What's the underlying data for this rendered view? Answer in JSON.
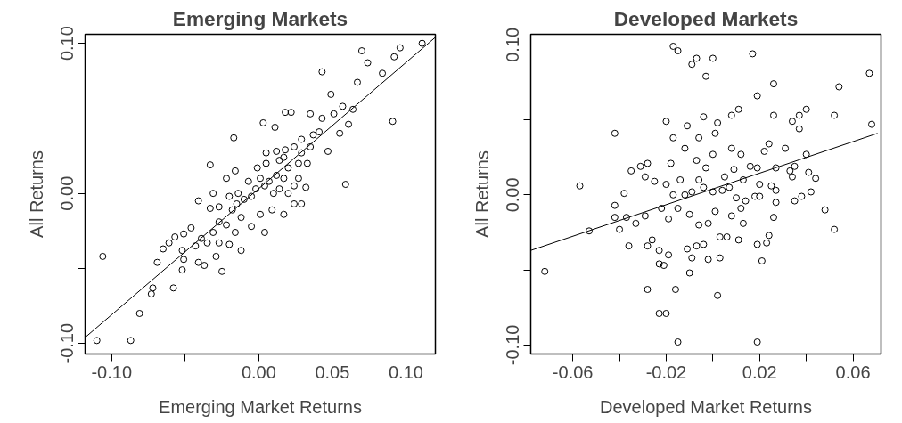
{
  "chart_data": [
    {
      "type": "scatter",
      "title": "Emerging Markets",
      "xlabel": "Emerging Market Returns",
      "ylabel": "All Returns",
      "grid": false,
      "xlim": [
        -0.118,
        0.12
      ],
      "ylim": [
        -0.107,
        0.106
      ],
      "xticks": [
        {
          "value": -0.1,
          "label": "-0.10"
        },
        {
          "value": -0.05,
          "label": null
        },
        {
          "value": 0,
          "label": "0.00"
        },
        0.05,
        {
          "value": 0.1,
          "label": "0.10"
        }
      ],
      "yticks": [
        {
          "value": -0.1,
          "label": "-0.10"
        },
        {
          "value": -0.05,
          "label": null
        },
        {
          "value": 0,
          "label": "0.00"
        },
        {
          "value": 0.05,
          "label": null
        },
        {
          "value": 0.1,
          "label": "0.10"
        }
      ],
      "series": [
        {
          "marker": "circle",
          "color": "#000000",
          "x": [
            0.111,
            0.096,
            0.092,
            0.07,
            0.074,
            0.043,
            0.084,
            0.067,
            0.049,
            0.057,
            0.064,
            0.091,
            0.018,
            0.022,
            0.035,
            0.003,
            0.011,
            -0.017,
            0.043,
            0.051,
            0.061,
            0.055,
            0.047,
            0.059,
            0.029,
            0.035,
            0.018,
            0.014,
            0.005,
            -0.033,
            -0.041,
            -0.031,
            -0.022,
            -0.016,
            -0.014,
            -0.007,
            -0.001,
            0.001,
            0.007,
            0.012,
            0.02,
            0.027,
            0.032,
            0.029,
            0.024,
            0.017,
            0.009,
            0.004,
            0.001,
            -0.005,
            -0.012,
            -0.018,
            -0.027,
            -0.033,
            -0.022,
            -0.031,
            -0.027,
            -0.02,
            -0.012,
            -0.029,
            -0.025,
            -0.037,
            -0.041,
            -0.046,
            -0.051,
            -0.057,
            -0.061,
            -0.065,
            -0.052,
            -0.051,
            -0.052,
            -0.069,
            -0.072,
            -0.073,
            -0.058,
            -0.081,
            -0.106,
            -0.11,
            -0.087,
            -0.035,
            -0.039,
            -0.043,
            -0.005,
            -0.01,
            -0.002,
            0.004,
            0.014,
            0.02,
            0.01,
            -0.015,
            -0.02,
            -0.027,
            -0.016,
            0.037,
            0.041,
            0.024,
            0.029,
            0.017,
            0.012,
            0.005,
            0.033,
            0.017,
            0.027,
            0.024
          ],
          "values": [
            0.1,
            0.097,
            0.091,
            0.095,
            0.087,
            0.081,
            0.08,
            0.074,
            0.066,
            0.058,
            0.056,
            0.048,
            0.054,
            0.054,
            0.053,
            0.047,
            0.044,
            0.037,
            0.05,
            0.053,
            0.046,
            0.04,
            0.028,
            0.006,
            0.036,
            0.031,
            0.029,
            0.022,
            0.027,
            0.019,
            -0.005,
            0.0,
            0.01,
            0.015,
            0.0,
            0.008,
            0.017,
            0.01,
            0.008,
            0.012,
            0.017,
            0.02,
            0.004,
            -0.007,
            -0.007,
            -0.014,
            -0.011,
            -0.026,
            -0.014,
            -0.022,
            -0.016,
            -0.011,
            -0.009,
            -0.01,
            -0.021,
            -0.026,
            -0.033,
            -0.034,
            -0.038,
            -0.042,
            -0.052,
            -0.048,
            -0.046,
            -0.023,
            -0.027,
            -0.029,
            -0.033,
            -0.037,
            -0.038,
            -0.044,
            -0.051,
            -0.046,
            -0.063,
            -0.067,
            -0.063,
            -0.08,
            -0.042,
            -0.098,
            -0.098,
            -0.033,
            -0.03,
            -0.035,
            -0.002,
            -0.004,
            0.003,
            0.005,
            0.003,
            0.0,
            0.0,
            -0.007,
            -0.002,
            -0.019,
            -0.026,
            0.039,
            0.041,
            0.031,
            0.027,
            0.024,
            0.028,
            0.02,
            0.02,
            0.01,
            0.01,
            0.005
          ]
        },
        {
          "type": "line",
          "color": "#000000",
          "x": [
            -0.118,
            0.12
          ],
          "values": [
            -0.096,
            0.104
          ]
        }
      ]
    },
    {
      "type": "scatter",
      "title": "Developed Markets",
      "xlabel": "Developed Market Returns",
      "ylabel": "All Returns",
      "grid": false,
      "xlim": [
        -0.078,
        0.072
      ],
      "ylim": [
        -0.106,
        0.107
      ],
      "xticks": [
        -0.06,
        {
          "value": -0.04,
          "label": null
        },
        -0.02,
        {
          "value": 0,
          "label": null
        },
        0.02,
        {
          "value": 0.04,
          "label": null
        },
        0.06
      ],
      "yticks": [
        {
          "value": -0.1,
          "label": "-0.10"
        },
        {
          "value": -0.05,
          "label": null
        },
        {
          "value": 0,
          "label": "0.00"
        },
        {
          "value": 0.05,
          "label": null
        },
        {
          "value": 0.1,
          "label": "0.10"
        }
      ],
      "series": [
        {
          "marker": "circle",
          "color": "#000000",
          "x": [
            -0.017,
            -0.015,
            -0.009,
            -0.007,
            0.0,
            -0.003,
            0.017,
            0.019,
            0.026,
            0.067,
            0.054,
            0.052,
            0.068,
            0.026,
            0.04,
            0.034,
            0.037,
            0.037,
            0.011,
            0.008,
            -0.004,
            -0.02,
            -0.017,
            -0.011,
            0.002,
            0.001,
            -0.042,
            -0.057,
            -0.072,
            -0.053,
            -0.042,
            -0.038,
            -0.042,
            -0.04,
            -0.036,
            -0.037,
            -0.033,
            -0.029,
            -0.035,
            -0.031,
            -0.028,
            -0.029,
            -0.025,
            -0.02,
            -0.017,
            -0.028,
            -0.023,
            -0.02,
            -0.016,
            -0.015,
            0.019,
            0.002,
            -0.01,
            0.003,
            -0.002,
            -0.023,
            -0.021,
            -0.019,
            -0.026,
            -0.028,
            -0.023,
            -0.009,
            -0.011,
            -0.007,
            -0.004,
            0.003,
            0.006,
            0.011,
            0.019,
            0.023,
            0.024,
            0.021,
            0.026,
            0.027,
            0.025,
            0.027,
            0.035,
            0.038,
            0.042,
            0.048,
            0.052,
            0.041,
            0.044,
            0.033,
            0.034,
            0.035,
            0.031,
            0.04,
            0.027,
            0.024,
            0.022,
            0.019,
            0.02,
            0.02,
            0.018,
            0.014,
            0.01,
            0.007,
            0.004,
            0.0,
            -0.004,
            -0.009,
            -0.012,
            -0.014,
            -0.006,
            -0.003,
            -0.007,
            0.0,
            0.008,
            0.012,
            0.016,
            0.009,
            0.005,
            0.013,
            0.012,
            0.008,
            0.013,
            0.001,
            -0.002,
            -0.006,
            -0.01,
            -0.015,
            -0.019,
            -0.022,
            -0.012,
            -0.018,
            -0.006
          ],
          "values": [
            0.099,
            0.096,
            0.087,
            0.091,
            0.091,
            0.079,
            0.094,
            0.066,
            0.074,
            0.081,
            0.072,
            0.053,
            0.047,
            0.053,
            0.057,
            0.049,
            0.053,
            0.044,
            0.057,
            0.053,
            0.052,
            0.049,
            0.038,
            0.046,
            0.048,
            0.041,
            0.041,
            0.006,
            -0.051,
            -0.024,
            -0.007,
            0.001,
            -0.015,
            -0.023,
            -0.034,
            -0.015,
            -0.019,
            -0.014,
            0.016,
            0.019,
            0.021,
            0.012,
            0.009,
            0.007,
            0.0,
            -0.063,
            -0.079,
            -0.079,
            -0.063,
            -0.098,
            -0.098,
            -0.067,
            -0.052,
            -0.042,
            -0.043,
            -0.046,
            -0.047,
            -0.04,
            -0.03,
            -0.034,
            -0.037,
            -0.042,
            -0.036,
            -0.034,
            -0.033,
            -0.028,
            -0.028,
            -0.03,
            -0.033,
            -0.032,
            -0.027,
            -0.044,
            -0.015,
            -0.005,
            0.006,
            0.003,
            -0.004,
            -0.001,
            0.002,
            -0.01,
            -0.023,
            0.015,
            0.011,
            0.016,
            0.012,
            0.019,
            0.031,
            0.027,
            0.018,
            0.034,
            0.029,
            0.018,
            0.007,
            -0.001,
            -0.001,
            -0.004,
            -0.002,
            0.005,
            0.003,
            0.002,
            0.005,
            0.002,
            0.0,
            0.01,
            0.01,
            0.018,
            0.023,
            0.027,
            0.031,
            0.027,
            0.019,
            0.017,
            0.012,
            0.01,
            -0.009,
            -0.014,
            -0.019,
            -0.011,
            -0.019,
            -0.02,
            -0.013,
            -0.009,
            -0.016,
            -0.009,
            0.031,
            0.021,
            0.038
          ]
        },
        {
          "type": "line",
          "color": "#000000",
          "x": [
            -0.078,
            0.0705
          ],
          "values": [
            -0.037,
            0.041
          ]
        }
      ]
    }
  ]
}
